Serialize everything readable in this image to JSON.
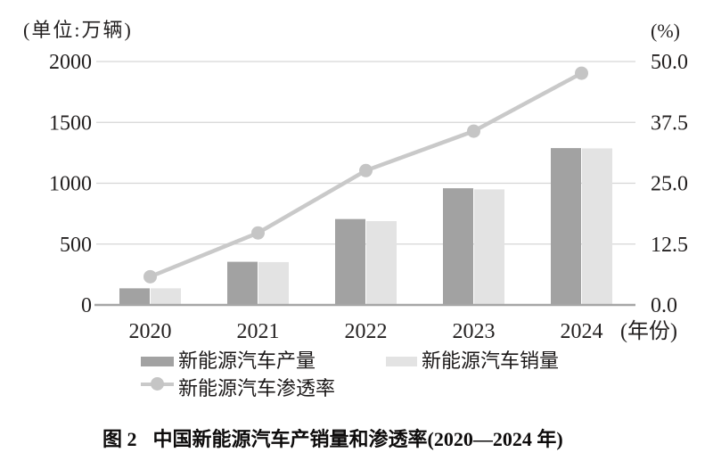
{
  "chart_data": {
    "type": "combo-bar-line",
    "title": "中国新能源汽车产销量和渗透率(2020—2024 年)",
    "categories": [
      "2020",
      "2021",
      "2022",
      "2023",
      "2024"
    ],
    "x_axis_unit": "(年份)",
    "series": [
      {
        "name": "新能源汽车产量",
        "type": "bar",
        "axis": "left",
        "color": "#a2a2a2",
        "values": [
          136.6,
          354.5,
          705.8,
          958.7,
          1288.8
        ]
      },
      {
        "name": "新能源汽车销量",
        "type": "bar",
        "axis": "left",
        "color": "#e3e3e3",
        "values": [
          136.7,
          352.1,
          688.7,
          949.5,
          1286.6
        ]
      },
      {
        "name": "新能源汽车渗透率",
        "type": "line",
        "axis": "right",
        "color": "#c9c9c9",
        "marker_color": "#c5c5c5",
        "values": [
          5.8,
          14.8,
          27.6,
          35.7,
          47.6
        ]
      }
    ],
    "left_axis": {
      "unit": "(单位:万辆)",
      "min": 0,
      "max": 2000,
      "tick_labels": [
        "0",
        "500",
        "1000",
        "1500",
        "2000"
      ]
    },
    "right_axis": {
      "unit": "(%)",
      "min": 0,
      "max": 50,
      "tick_labels": [
        "0.0",
        "12.5",
        "25.0",
        "37.5",
        "50.0"
      ]
    },
    "grid": true,
    "legend_position": "bottom"
  },
  "caption": {
    "figure_label": "图 2",
    "title": "中国新能源汽车产销量和渗透率(2020—2024 年)"
  },
  "colors": {
    "gridline": "#d6d6d6",
    "axis_line": "#a6a6a6",
    "tick_text": "#221f1f"
  }
}
